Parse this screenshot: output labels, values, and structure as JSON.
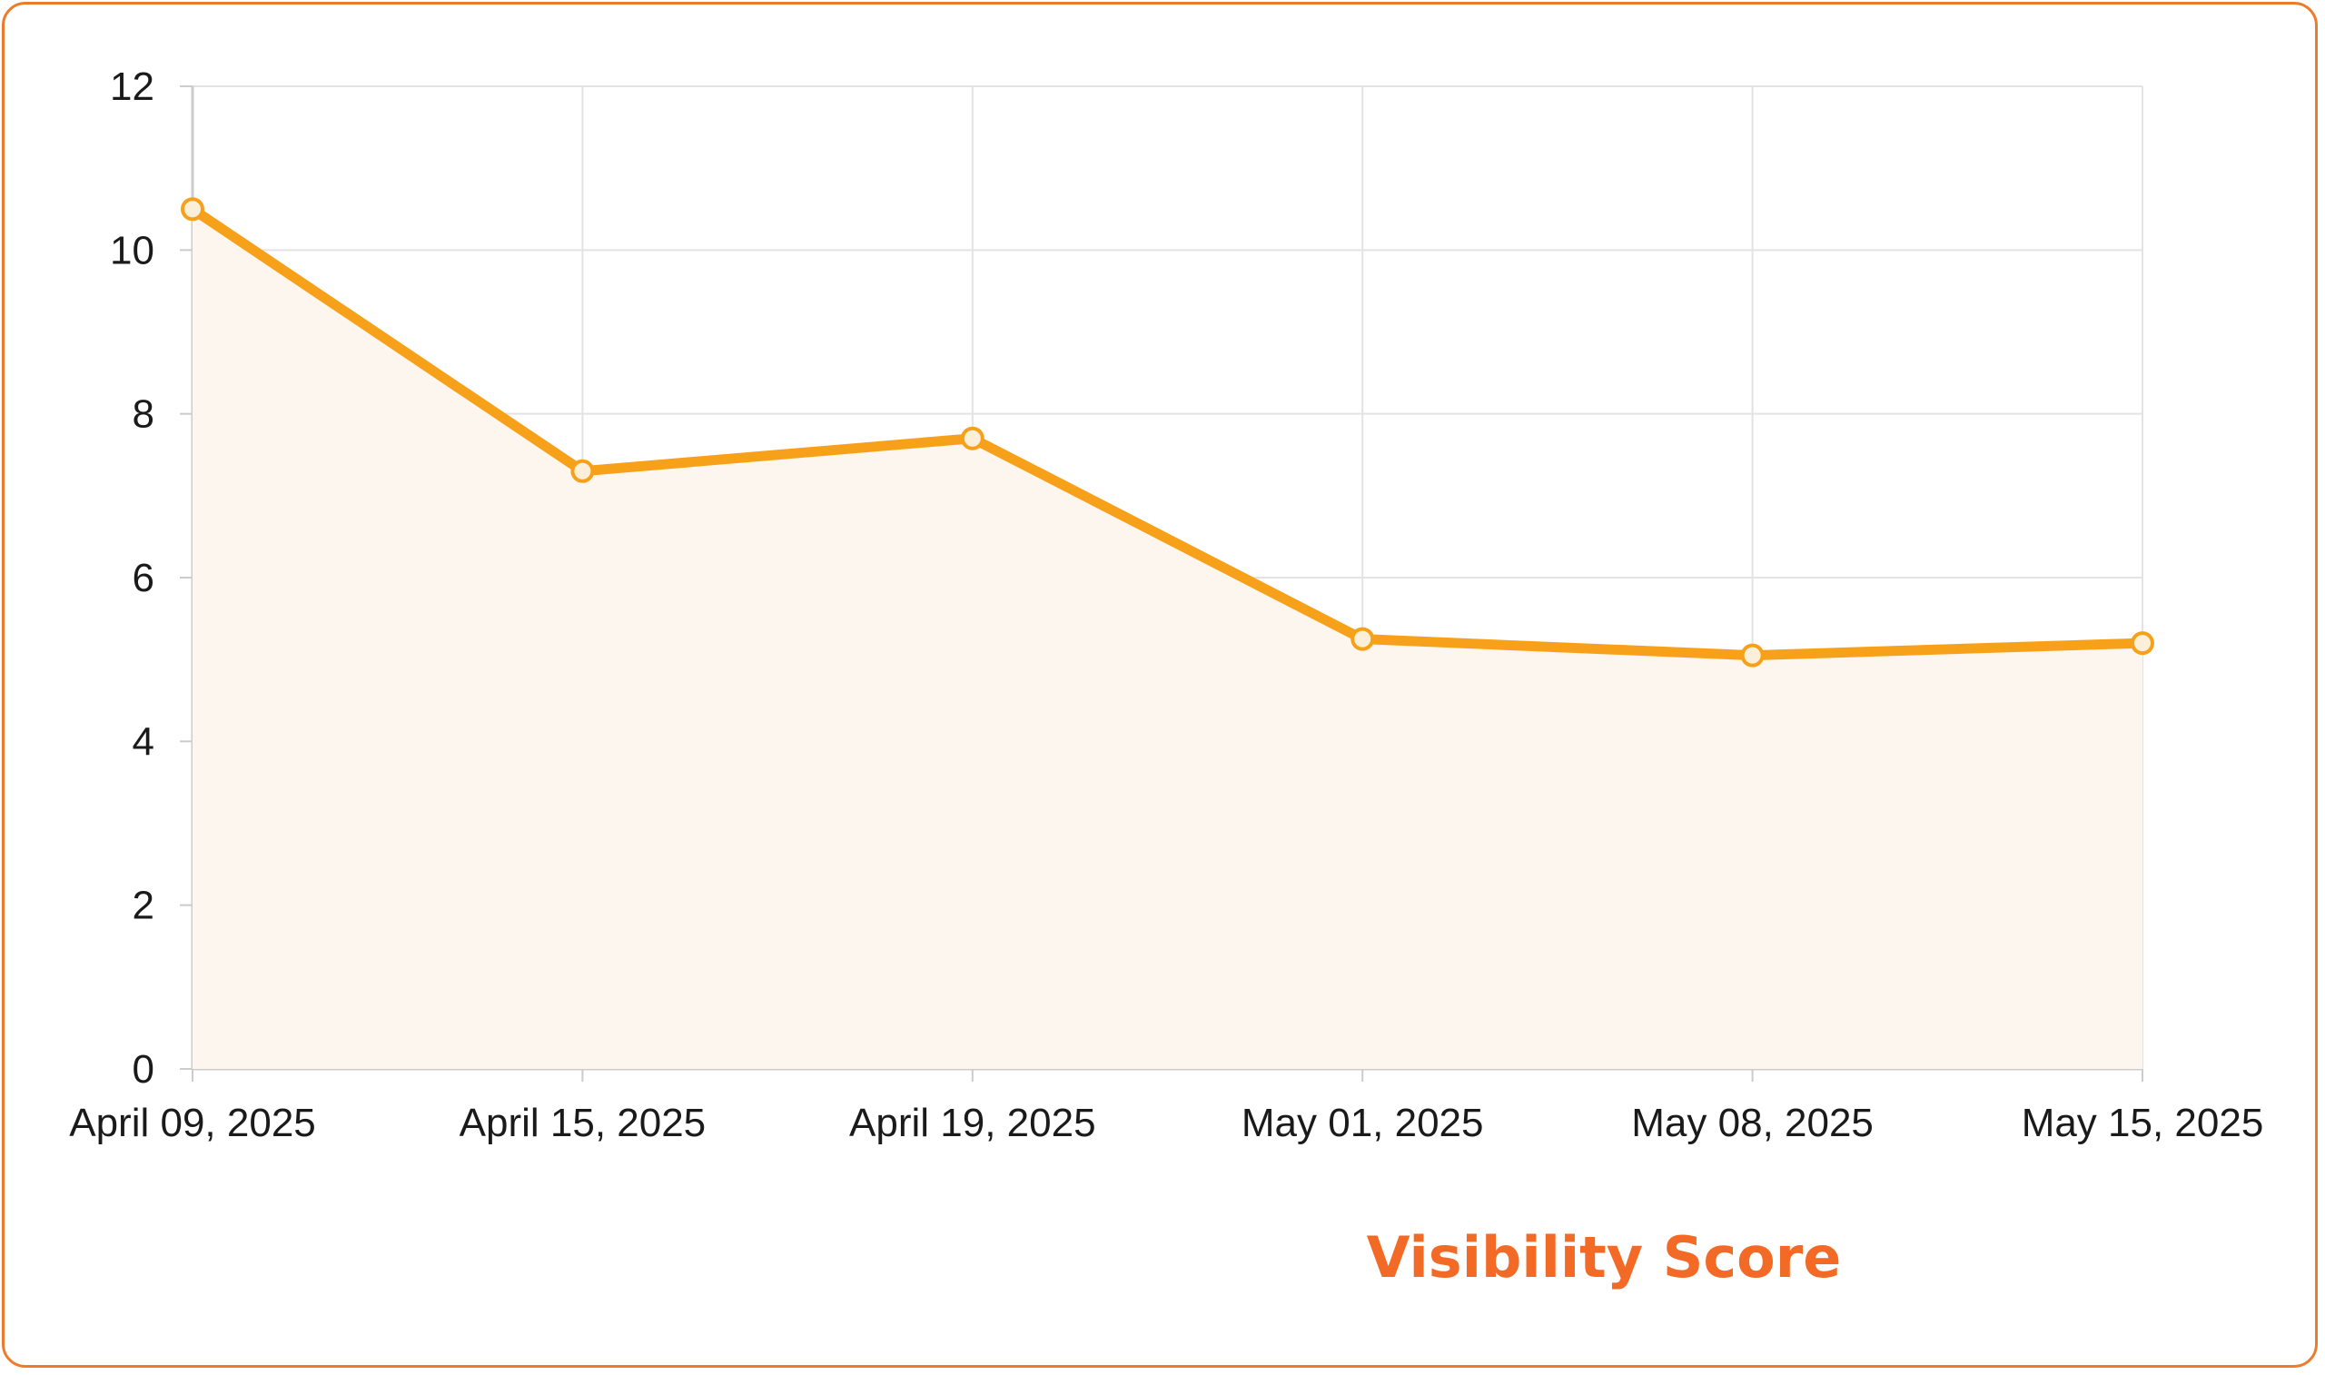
{
  "chart_data": {
    "type": "area",
    "x": [
      "April 09, 2025",
      "April 15, 2025",
      "April 19, 2025",
      "May 01, 2025",
      "May 08, 2025",
      "May 15, 2025"
    ],
    "series": [
      {
        "name": "Visibility Score",
        "values": [
          10.5,
          7.3,
          7.7,
          5.25,
          5.05,
          5.2
        ]
      }
    ],
    "ylim": [
      0,
      12
    ],
    "yticks": [
      0,
      2,
      4,
      6,
      8,
      10,
      12
    ],
    "title": "",
    "xlabel": "",
    "ylabel": "",
    "grid": true,
    "legend_placement": "bottom"
  },
  "colors": {
    "line": "#f7a11a",
    "fill": "#fdf6ef",
    "grid": "#e3e3e3",
    "axis": "#cccccc",
    "legend_text": "#f26a25",
    "border": "#ee7b2b"
  }
}
